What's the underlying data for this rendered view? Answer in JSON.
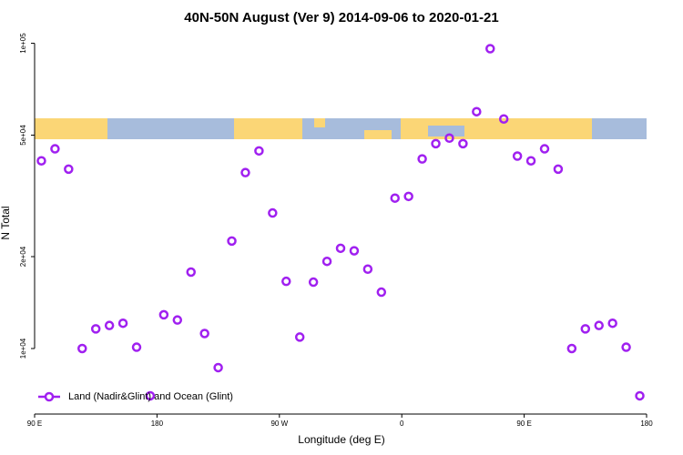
{
  "chart_data": {
    "type": "scatter",
    "title": "40N-50N August (Ver 9)   2014-09-06 to 2020-01-21",
    "x_label": "Longitude (deg E)",
    "y_label": "N Total",
    "log_y": true,
    "legend": "bottom-left",
    "xlim": [
      90,
      540
    ],
    "xticks": [
      {
        "value": 90,
        "label": "90 E"
      },
      {
        "value": 180,
        "label": "180"
      },
      {
        "value": 270,
        "label": "90 W"
      },
      {
        "value": 360,
        "label": "0"
      },
      {
        "value": 450,
        "label": "90 E"
      },
      {
        "value": 540,
        "label": "180"
      }
    ],
    "ylim": [
      6100,
      109000
    ],
    "yticks": [
      {
        "value": 10000,
        "label": "1e+04"
      },
      {
        "value": 20000,
        "label": "2e+04"
      },
      {
        "value": 50000,
        "label": "5e+04"
      },
      {
        "value": 100000,
        "label": "1e+05"
      }
    ],
    "series": [
      {
        "name": "Land (Nadir&Glint) and Ocean (Glint)",
        "color": "#a020f0",
        "x": [
          95,
          105,
          115,
          125,
          135,
          145,
          155,
          165,
          175,
          185,
          195,
          205,
          215,
          225,
          235,
          245,
          255,
          265,
          275,
          285,
          295,
          305,
          315,
          325,
          335,
          345,
          355,
          365,
          375,
          385,
          395,
          405,
          415,
          425,
          435,
          445,
          455,
          465,
          475,
          485,
          495,
          505,
          515,
          525,
          535
        ],
        "values": [
          41200,
          45100,
          38700,
          10000,
          11600,
          11900,
          12100,
          10100,
          7000,
          12900,
          12400,
          17800,
          11200,
          8660,
          22500,
          37700,
          44400,
          27800,
          16600,
          10900,
          16500,
          19300,
          21300,
          20900,
          18200,
          15300,
          31100,
          31500,
          41800,
          46900,
          48900,
          46900,
          59700,
          96000,
          56500,
          42700,
          41200,
          45100,
          38700,
          10000,
          11600,
          11900,
          12100,
          10100,
          7000
        ]
      }
    ]
  }
}
